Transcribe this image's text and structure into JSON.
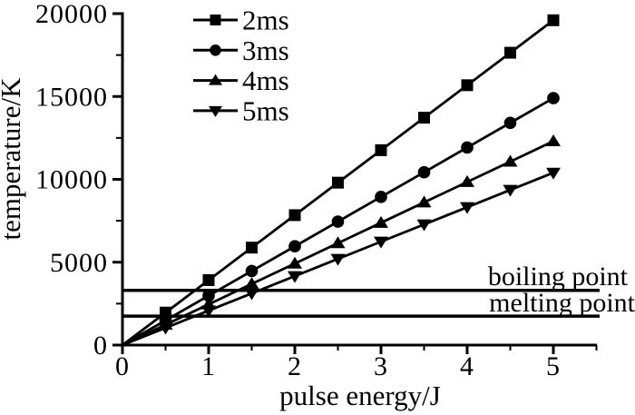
{
  "figure": {
    "background": "#ffffff",
    "ink_color": "#000000"
  },
  "axes": {
    "x": {
      "label": "pulse energy/J",
      "min": 0,
      "max": 5.5,
      "major_ticks": [
        0,
        1,
        2,
        3,
        4,
        5
      ],
      "major_tick_labels": [
        "0",
        "1",
        "2",
        "3",
        "4",
        "5"
      ],
      "minor_ticks": [
        0.5,
        1.5,
        2.5,
        3.5,
        4.5,
        5.5
      ]
    },
    "y": {
      "label": "temperature/K",
      "min": 0,
      "max": 20000,
      "major_ticks": [
        0,
        5000,
        10000,
        15000,
        20000
      ],
      "major_tick_labels": [
        "0",
        "5000",
        "10000",
        "15000",
        "20000"
      ],
      "minor_ticks": [
        2500,
        7500,
        12500,
        17500
      ]
    }
  },
  "legend": {
    "position": "top-inside",
    "items": [
      {
        "label": "2ms",
        "marker": "square"
      },
      {
        "label": "3ms",
        "marker": "circle"
      },
      {
        "label": "4ms",
        "marker": "triangle-up"
      },
      {
        "label": "5ms",
        "marker": "triangle-down"
      }
    ]
  },
  "reference_lines": [
    {
      "label": "boiling point",
      "value_K": 3300
    },
    {
      "label": "melting point",
      "value_K": 1750
    }
  ],
  "chart_data": {
    "type": "line",
    "title": "",
    "xlabel": "pulse energy/J",
    "ylabel": "temperature/K",
    "xlim": [
      0,
      5.5
    ],
    "ylim": [
      0,
      20000
    ],
    "grid": false,
    "legend_position": "top-left-inside",
    "x": [
      0,
      0.5,
      1,
      1.5,
      2,
      2.5,
      3,
      3.5,
      4,
      4.5,
      5
    ],
    "series": [
      {
        "name": "2ms",
        "marker": "square",
        "values": [
          0,
          1960,
          3920,
          5880,
          7840,
          9800,
          11760,
          13720,
          15680,
          17640,
          19600
        ]
      },
      {
        "name": "3ms",
        "marker": "circle",
        "values": [
          0,
          1490,
          2980,
          4470,
          5960,
          7450,
          8940,
          10430,
          11920,
          13410,
          14900
        ]
      },
      {
        "name": "4ms",
        "marker": "triangle-up",
        "values": [
          0,
          1230,
          2460,
          3690,
          4920,
          6150,
          7380,
          8610,
          9840,
          11070,
          12300
        ]
      },
      {
        "name": "5ms",
        "marker": "triangle-down",
        "values": [
          0,
          1040,
          2080,
          3120,
          4160,
          5200,
          6240,
          7280,
          8320,
          9360,
          10400
        ]
      }
    ],
    "annotations": [
      {
        "text": "boiling point",
        "y": 3300,
        "type": "hline"
      },
      {
        "text": "melting point",
        "y": 1750,
        "type": "hline"
      }
    ]
  }
}
